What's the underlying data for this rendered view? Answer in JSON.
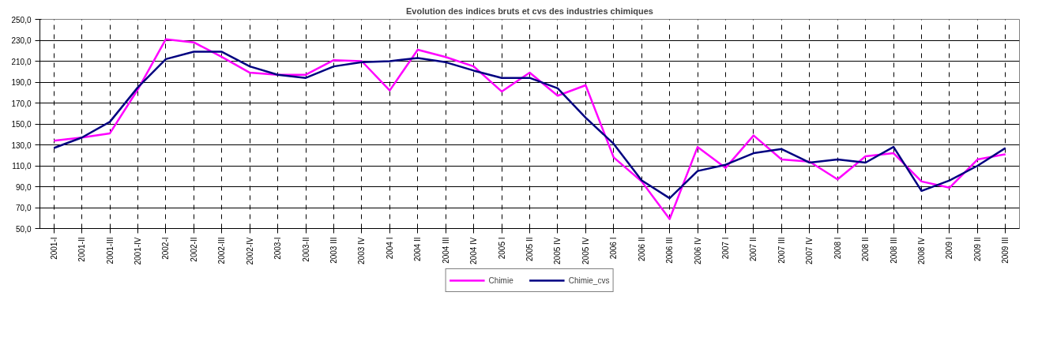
{
  "chart_data": {
    "type": "line",
    "title": "Evolution des indices bruts et cvs des industries chimiques",
    "categories": [
      "2001-I",
      "2001-II",
      "2001-III",
      "2001-IV",
      "2002-I",
      "2002-II",
      "2002-III",
      "2002-IV",
      "2003-I",
      "2003-II",
      "2003 III",
      "2003 IV",
      "2004 I",
      "2004 II",
      "2004 III",
      "2004 IV",
      "2005 I",
      "2005 II",
      "2005 IV",
      "2005 IV",
      "2006 I",
      "2006 II",
      "2006 III",
      "2006 IV",
      "2007 I",
      "2007 II",
      "2007 III",
      "2007 IV",
      "2008 I",
      "2008 II",
      "2008 III",
      "2008 IV",
      "2009 I",
      "2009 II",
      "2009 III"
    ],
    "series": [
      {
        "name": "Chimie",
        "color": "#ff00ff",
        "values": [
          134,
          137,
          141,
          183,
          231,
          228,
          214,
          199,
          197,
          197,
          211,
          210,
          182,
          221,
          214,
          205,
          181,
          199,
          177,
          187,
          118,
          95,
          59,
          128,
          108,
          139,
          116,
          114,
          97,
          119,
          122,
          95,
          89,
          116,
          121
        ]
      },
      {
        "name": "Chimie_cvs",
        "color": "#000080",
        "values": [
          127,
          137,
          152,
          185,
          212,
          219,
          219,
          205,
          197,
          194,
          205,
          209,
          210,
          213,
          209,
          201,
          194,
          194,
          184,
          156,
          131,
          96,
          79,
          105,
          111,
          122,
          126,
          113,
          116,
          113,
          128,
          86,
          96,
          110,
          127
        ]
      }
    ],
    "ylim": [
      50,
      250
    ],
    "yticks": [
      {
        "value": 50,
        "label": "50,0"
      },
      {
        "value": 70,
        "label": "70,0"
      },
      {
        "value": 90,
        "label": "90,0"
      },
      {
        "value": 110,
        "label": "110,0"
      },
      {
        "value": 130,
        "label": "130,0"
      },
      {
        "value": 150,
        "label": "150,0"
      },
      {
        "value": 170,
        "label": "170,0"
      },
      {
        "value": 190,
        "label": "190,0"
      },
      {
        "value": 210,
        "label": "210,0"
      },
      {
        "value": 230,
        "label": "230,0"
      },
      {
        "value": 250,
        "label": "250,0"
      }
    ],
    "grid": true,
    "legend": "bottom",
    "marker": "none",
    "line_style": "solid"
  }
}
